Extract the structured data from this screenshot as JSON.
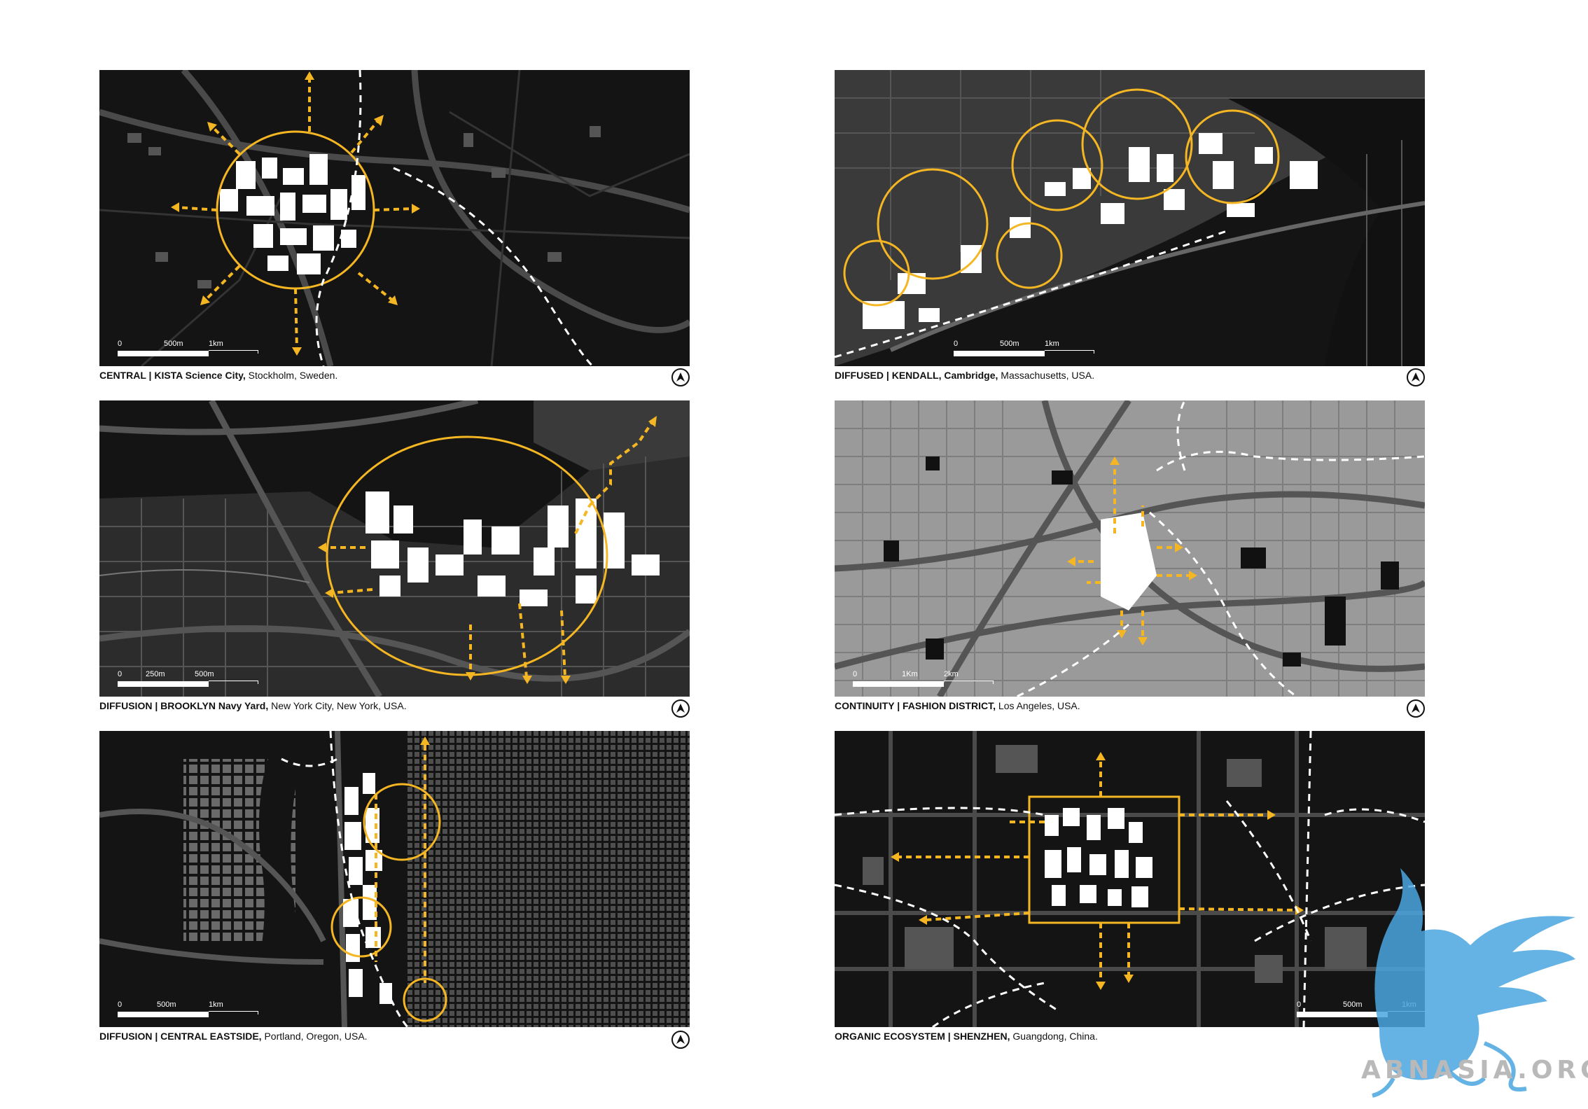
{
  "panels": [
    {
      "scale": {
        "zero": "0",
        "mid": "500m",
        "end": "1km"
      },
      "caption": {
        "type": "CENTRAL | ",
        "name": "KISTA Science City,",
        "place": " Stockholm, Sweden."
      },
      "theme": "dark"
    },
    {
      "scale": {
        "zero": "0",
        "mid": "500m",
        "end": "1km"
      },
      "caption": {
        "type": "DIFFUSED | ",
        "name": "KENDALL, Cambridge,",
        "place": " Massachusetts, USA."
      },
      "theme": "dark"
    },
    {
      "scale": {
        "zero": "0",
        "mid": "250m",
        "end": "500m"
      },
      "caption": {
        "type": "DIFFUSION | ",
        "name": "BROOKLYN Navy Yard,",
        "place": " New York City, New York, USA."
      },
      "theme": "dark"
    },
    {
      "scale": {
        "zero": "0",
        "mid": "1Km",
        "end": "2km"
      },
      "caption": {
        "type": "CONTINUITY | ",
        "name": "FASHION DISTRICT,",
        "place": " Los Angeles, USA."
      },
      "theme": "light"
    },
    {
      "scale": {
        "zero": "0",
        "mid": "500m",
        "end": "1km"
      },
      "caption": {
        "type": "DIFFUSION | ",
        "name": "CENTRAL EASTSIDE,",
        "place": " Portland, Oregon, USA."
      },
      "theme": "dark"
    },
    {
      "scale": {
        "zero": "0",
        "mid": "500m",
        "end": "1km"
      },
      "caption": {
        "type": "ORGANIC ECOSYSTEM | ",
        "name": "SHENZHEN,",
        "place": " Guangdong, China."
      },
      "theme": "dark"
    }
  ],
  "colors": {
    "accent": "#f5b623",
    "dark_bg": "#141414",
    "light_bg": "#9a9a9a",
    "logo": "#4aa6e0"
  },
  "watermark": "ABNASIA.ORG"
}
